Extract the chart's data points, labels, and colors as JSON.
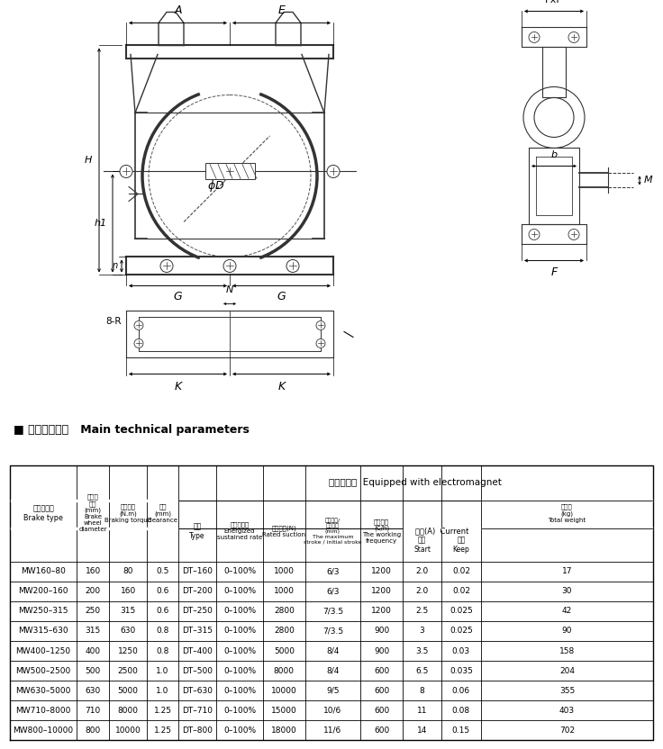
{
  "rows": [
    [
      "MW160–80",
      "160",
      "80",
      "0.5",
      "DT–160",
      "0–100%",
      "1000",
      "6/3",
      "1200",
      "2.0",
      "0.02",
      "17"
    ],
    [
      "MW200–160",
      "200",
      "160",
      "0.6",
      "DT–200",
      "0–100%",
      "1000",
      "6/3",
      "1200",
      "2.0",
      "0.02",
      "30"
    ],
    [
      "MW250–315",
      "250",
      "315",
      "0.6",
      "DT–250",
      "0–100%",
      "2800",
      "7/3.5",
      "1200",
      "2.5",
      "0.025",
      "42"
    ],
    [
      "MW315–630",
      "315",
      "630",
      "0.8",
      "DT–315",
      "0–100%",
      "2800",
      "7/3.5",
      "900",
      "3",
      "0.025",
      "90"
    ],
    [
      "MW400–1250",
      "400",
      "1250",
      "0.8",
      "DT–400",
      "0–100%",
      "5000",
      "8/4",
      "900",
      "3.5",
      "0.03",
      "158"
    ],
    [
      "MW500–2500",
      "500",
      "2500",
      "1.0",
      "DT–500",
      "0–100%",
      "8000",
      "8/4",
      "600",
      "6.5",
      "0.035",
      "204"
    ],
    [
      "MW630–5000",
      "630",
      "5000",
      "1.0",
      "DT–630",
      "0–100%",
      "10000",
      "9/5",
      "600",
      "8",
      "0.06",
      "355"
    ],
    [
      "MW710–8000",
      "710",
      "8000",
      "1.25",
      "DT–710",
      "0–100%",
      "15000",
      "10/6",
      "600",
      "11",
      "0.08",
      "403"
    ],
    [
      "MW800–10000",
      "800",
      "10000",
      "1.25",
      "DT–800",
      "0–100%",
      "18000",
      "11/6",
      "600",
      "14",
      "0.15",
      "702"
    ]
  ],
  "bg_color": "#ffffff",
  "line_color": "#000000",
  "drawing_color": "#333333"
}
